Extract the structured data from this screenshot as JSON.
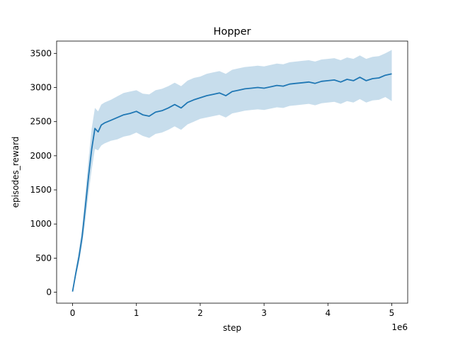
{
  "chart_data": {
    "type": "line",
    "title": "Hopper",
    "xlabel": "step",
    "ylabel": "episodes_reward",
    "x_offset_label": "1e6",
    "xlim": [
      -250000,
      5250000
    ],
    "ylim": [
      -160,
      3680
    ],
    "x_ticks": [
      0,
      1000000,
      2000000,
      3000000,
      4000000,
      5000000
    ],
    "x_tick_labels": [
      "0",
      "1",
      "2",
      "3",
      "4",
      "5"
    ],
    "y_ticks": [
      0,
      500,
      1000,
      1500,
      2000,
      2500,
      3000,
      3500
    ],
    "y_tick_labels": [
      "0",
      "500",
      "1000",
      "1500",
      "2000",
      "2500",
      "3000",
      "3500"
    ],
    "grid": false,
    "legend": "none",
    "colors": {
      "line": "#1f77b4",
      "band": "#1f77b4",
      "band_opacity": 0.25
    },
    "series": [
      {
        "x": [
          0,
          50000,
          100000,
          150000,
          200000,
          250000,
          300000,
          350000,
          400000,
          450000,
          500000,
          600000,
          700000,
          800000,
          900000,
          1000000,
          1100000,
          1200000,
          1300000,
          1400000,
          1500000,
          1600000,
          1700000,
          1800000,
          1900000,
          2000000,
          2100000,
          2200000,
          2300000,
          2400000,
          2500000,
          2600000,
          2700000,
          2800000,
          2900000,
          3000000,
          3100000,
          3200000,
          3300000,
          3400000,
          3500000,
          3600000,
          3700000,
          3800000,
          3900000,
          4000000,
          4100000,
          4200000,
          4300000,
          4400000,
          4500000,
          4600000,
          4700000,
          4800000,
          4900000,
          5000000
        ],
        "values": [
          10,
          280,
          520,
          820,
          1250,
          1700,
          2100,
          2400,
          2350,
          2450,
          2480,
          2520,
          2560,
          2600,
          2620,
          2650,
          2600,
          2580,
          2640,
          2660,
          2700,
          2750,
          2700,
          2780,
          2820,
          2850,
          2880,
          2900,
          2920,
          2880,
          2940,
          2960,
          2980,
          2990,
          3000,
          2990,
          3010,
          3030,
          3020,
          3050,
          3060,
          3070,
          3080,
          3060,
          3090,
          3100,
          3110,
          3080,
          3120,
          3100,
          3150,
          3100,
          3130,
          3140,
          3180,
          3200
        ],
        "lower": [
          0,
          220,
          430,
          700,
          1050,
          1450,
          1800,
          2100,
          2080,
          2150,
          2180,
          2220,
          2240,
          2280,
          2300,
          2340,
          2290,
          2260,
          2320,
          2340,
          2380,
          2430,
          2380,
          2460,
          2500,
          2540,
          2560,
          2580,
          2600,
          2560,
          2620,
          2640,
          2660,
          2670,
          2680,
          2670,
          2690,
          2710,
          2700,
          2730,
          2740,
          2750,
          2760,
          2740,
          2770,
          2780,
          2790,
          2760,
          2800,
          2780,
          2830,
          2780,
          2810,
          2820,
          2860,
          2800
        ],
        "upper": [
          30,
          340,
          620,
          950,
          1450,
          1950,
          2400,
          2700,
          2650,
          2750,
          2780,
          2820,
          2870,
          2920,
          2940,
          2960,
          2910,
          2900,
          2960,
          2980,
          3020,
          3070,
          3020,
          3100,
          3140,
          3160,
          3200,
          3220,
          3240,
          3200,
          3260,
          3280,
          3300,
          3310,
          3320,
          3310,
          3330,
          3350,
          3340,
          3370,
          3380,
          3390,
          3400,
          3380,
          3410,
          3420,
          3430,
          3400,
          3440,
          3420,
          3470,
          3420,
          3450,
          3460,
          3500,
          3550
        ]
      }
    ]
  }
}
